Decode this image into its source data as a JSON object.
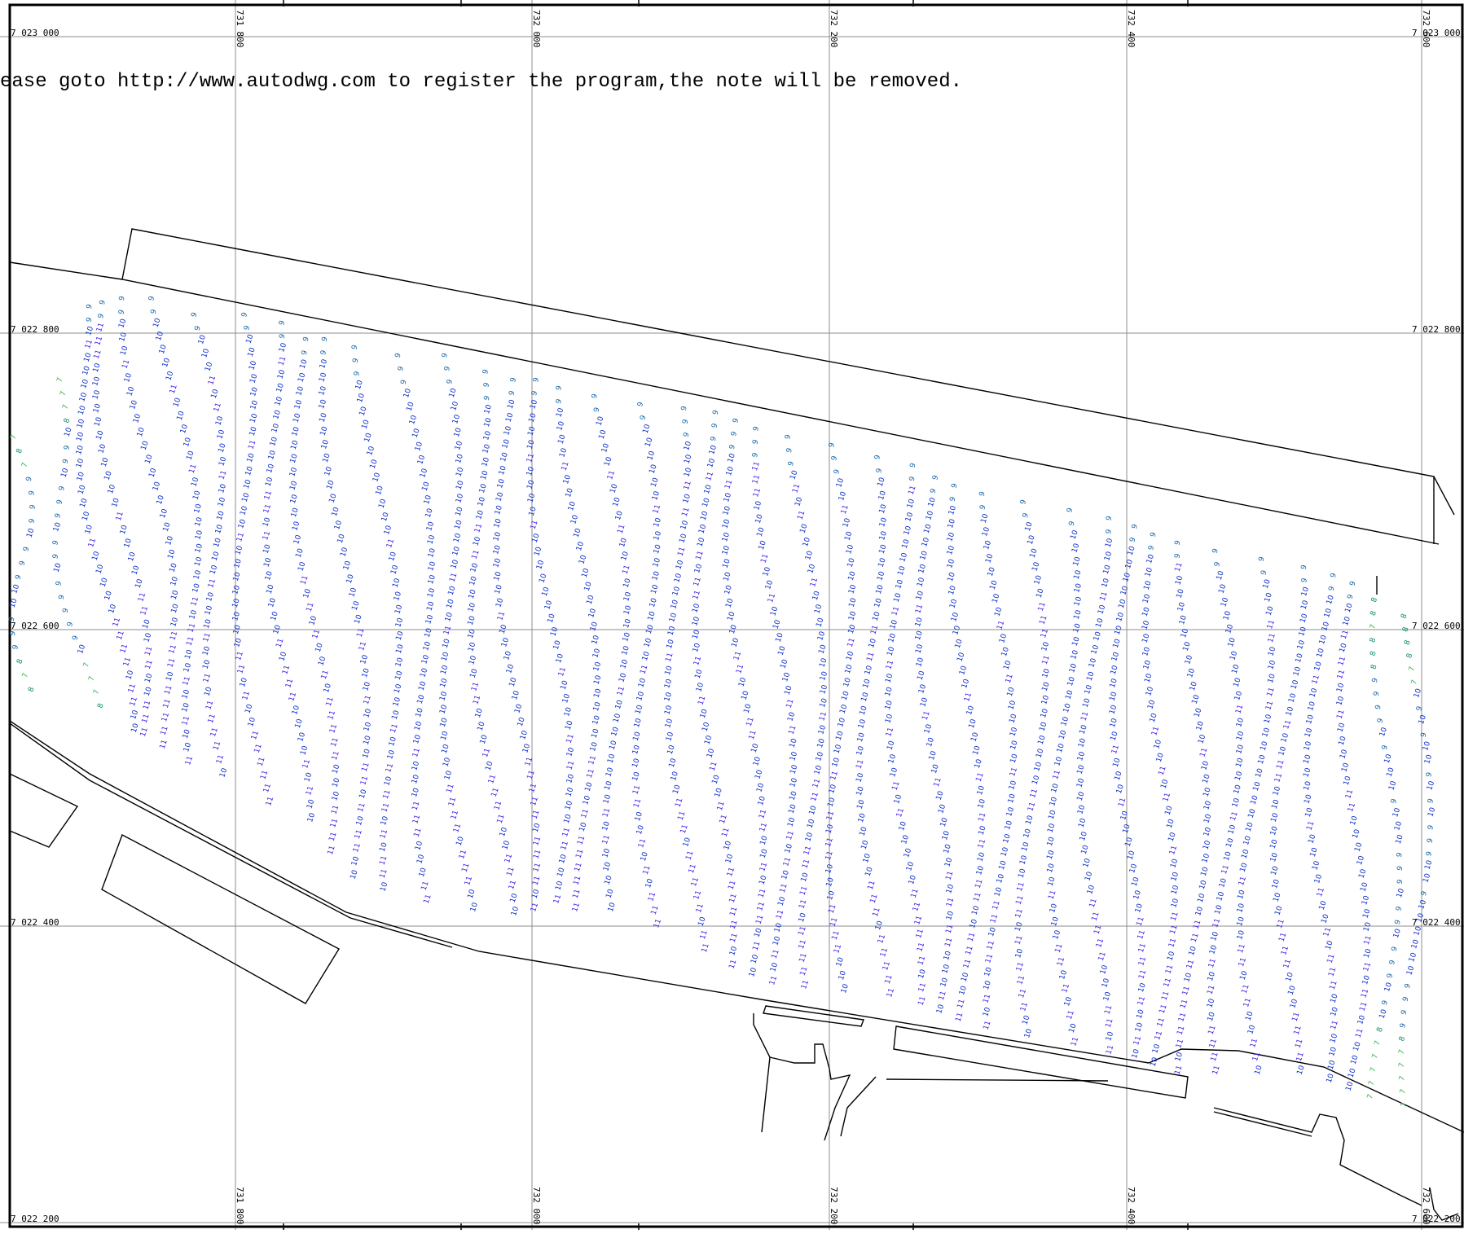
{
  "watermark": {
    "text": "ease goto http://www.autodwg.com to register the program,the note will be removed."
  },
  "grid": {
    "easting_labels": [
      "731 800",
      "732 000",
      "732 200",
      "732 400",
      "732 600"
    ],
    "northing_labels": [
      "7 023 000",
      "7 022 800",
      "7 022 600",
      "7 022 400",
      "7 022 200"
    ]
  },
  "soundings": {
    "values_shown": [
      "11",
      "10",
      "9",
      "8",
      "7",
      "6"
    ],
    "colors": {
      "11": "#3f1ee6",
      "10": "#0a2cc8",
      "9": "#1565a8",
      "8": "#0c8a6e",
      "7": "#2fb84a",
      "6": "#58d63a"
    }
  },
  "colors": {
    "background": "#ffffff",
    "grid": "#8c8c8c",
    "linework": "#000000"
  }
}
